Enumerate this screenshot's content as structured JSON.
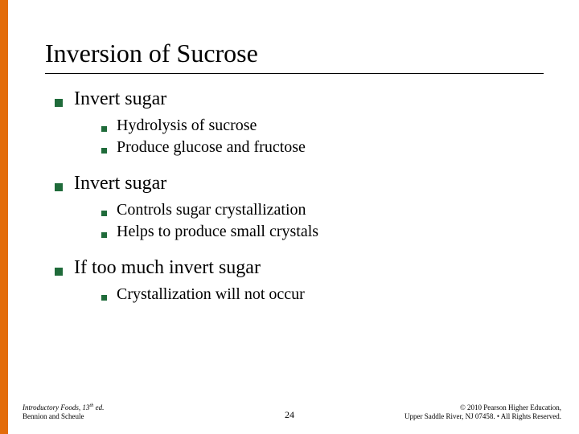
{
  "accent_color": "#e36c0a",
  "bullet_color": "#1f6b3a",
  "title": "Inversion of Sucrose",
  "sections": [
    {
      "heading": "Invert sugar",
      "items": [
        "Hydrolysis of sucrose",
        "Produce glucose and fructose"
      ]
    },
    {
      "heading": "Invert sugar",
      "items": [
        "Controls sugar crystallization",
        "Helps to produce small crystals"
      ]
    },
    {
      "heading": "If too much invert sugar",
      "items": [
        "Crystallization will not occur"
      ]
    }
  ],
  "footer": {
    "left_line1_a": "Introductory Foods, 13",
    "left_line1_b": "th",
    "left_line1_c": " ed.",
    "left_line2": "Bennion and Scheule",
    "page": "24",
    "right_line1": "© 2010 Pearson Higher Education,",
    "right_line2": "Upper Saddle River, NJ 07458. • All Rights Reserved."
  }
}
